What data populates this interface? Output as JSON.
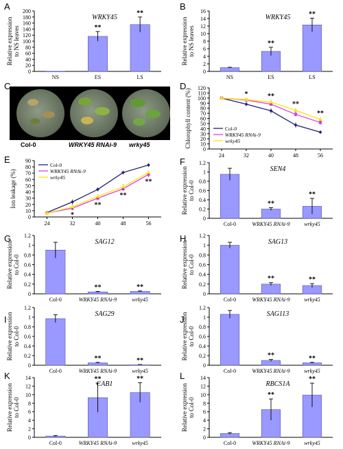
{
  "panel_letters": {
    "A": "A",
    "B": "B",
    "C": "C",
    "D": "D",
    "E": "E",
    "F": "F",
    "G": "G",
    "H": "H",
    "I": "I",
    "J": "J",
    "K": "K",
    "L": "L"
  },
  "photo": {
    "labels": [
      "Col-0",
      "WRKY45 RNAi-9",
      "wrky45"
    ]
  },
  "colors": {
    "bar": "#9999ff",
    "col0": "#1f1f7a",
    "rnai": "#e040e0",
    "wrky": "#ffe600"
  },
  "chart_data": [
    {
      "id": "A",
      "type": "bar",
      "title": "WRKY45",
      "ylabel": "Relative expression\nto NS leaves",
      "categories": [
        "NS",
        "ES",
        "LS"
      ],
      "values": [
        0.5,
        116,
        155
      ],
      "errors": [
        0,
        16,
        25
      ],
      "sig": [
        "",
        "**",
        "**"
      ],
      "ylim": [
        0,
        200
      ],
      "yticks": [
        0,
        20,
        40,
        60,
        80,
        100,
        120,
        140,
        160,
        180,
        200
      ]
    },
    {
      "id": "B",
      "type": "bar",
      "title": "WRKY45",
      "ylabel": "Relative expression\nto NS leaves",
      "categories": [
        "NS",
        "ES",
        "LS"
      ],
      "values": [
        1,
        5.3,
        12.3
      ],
      "errors": [
        0.1,
        1.1,
        1.8
      ],
      "sig": [
        "",
        "**",
        "**"
      ],
      "ylim": [
        0,
        16
      ],
      "yticks": [
        0,
        2,
        4,
        6,
        8,
        10,
        12,
        14,
        16
      ]
    },
    {
      "id": "D",
      "type": "line",
      "ylabel": "Chlorophyll content (%)",
      "x": [
        24,
        32,
        40,
        48,
        56
      ],
      "ylim": [
        0,
        120
      ],
      "yticks": [
        0,
        10,
        20,
        30,
        40,
        50,
        60,
        70,
        80,
        90,
        100,
        110,
        120
      ],
      "series": [
        {
          "name": "Col-0",
          "values": [
            100,
            88,
            75,
            47,
            33
          ],
          "errors": [
            2,
            4,
            5,
            5,
            3
          ]
        },
        {
          "name": "WRKY45 RNAi-9",
          "values": [
            100,
            96,
            88,
            68,
            52
          ],
          "errors": [
            2,
            3,
            3,
            4,
            4
          ]
        },
        {
          "name": "wrky45",
          "values": [
            100,
            97,
            92,
            76,
            58
          ],
          "errors": [
            2,
            3,
            4,
            4,
            4
          ]
        }
      ],
      "sig": [
        "",
        "*",
        "**",
        "**",
        "**"
      ],
      "legend": "bottom-left"
    },
    {
      "id": "E",
      "type": "line",
      "ylabel": "Ion leakage (%)",
      "x": [
        24,
        32,
        40,
        48,
        56
      ],
      "ylim": [
        0,
        90
      ],
      "yticks": [
        0,
        10,
        20,
        30,
        40,
        50,
        60,
        70,
        80,
        90
      ],
      "series": [
        {
          "name": "Col-0",
          "values": [
            7,
            24,
            44,
            71,
            83
          ],
          "errors": [
            1,
            4,
            3,
            3,
            3
          ]
        },
        {
          "name": "WRKY45 RNAi-9",
          "values": [
            6,
            14,
            30,
            45,
            68
          ],
          "errors": [
            1,
            3,
            3,
            3,
            4
          ]
        },
        {
          "name": "wrky45",
          "values": [
            6,
            16,
            33,
            48,
            71
          ],
          "errors": [
            1,
            3,
            3,
            4,
            3
          ]
        }
      ],
      "sig": [
        "",
        "*",
        "**",
        "**",
        "**"
      ],
      "legend": "top-left"
    },
    {
      "id": "F",
      "type": "bar",
      "title": "SEN4",
      "ylabel": "Relative expression\nto Col-0",
      "categories": [
        "Col-0",
        "WRKY45 RNAi-9",
        "wrky45"
      ],
      "values": [
        0.95,
        0.2,
        0.26
      ],
      "errors": [
        0.13,
        0.03,
        0.17
      ],
      "sig": [
        "",
        "**",
        "**"
      ],
      "ylim": [
        0,
        1.2
      ],
      "yticks": [
        0,
        0.2,
        0.4,
        0.6,
        0.8,
        1,
        1.2
      ]
    },
    {
      "id": "G",
      "type": "bar",
      "title": "SAG12",
      "ylabel": "Relative expression\nto Col-0",
      "categories": [
        "Col-0",
        "WRKY45 RNAi-9",
        "wrky45"
      ],
      "values": [
        0.9,
        0.04,
        0.05
      ],
      "errors": [
        0.16,
        0.01,
        0.01
      ],
      "sig": [
        "",
        "**",
        "**"
      ],
      "ylim": [
        0,
        1.2
      ],
      "yticks": [
        0,
        0.2,
        0.4,
        0.6,
        0.8,
        1,
        1.2
      ]
    },
    {
      "id": "H",
      "type": "bar",
      "title": "SAG13",
      "ylabel": "Relative expression\nto Col-0",
      "categories": [
        "Col-0",
        "WRKY45 RNAi-9",
        "wrky45"
      ],
      "values": [
        1.0,
        0.2,
        0.17
      ],
      "errors": [
        0.06,
        0.03,
        0.04
      ],
      "sig": [
        "",
        "**",
        "**"
      ],
      "ylim": [
        0,
        1.2
      ],
      "yticks": [
        0,
        0.2,
        0.4,
        0.6,
        0.8,
        1,
        1.2
      ]
    },
    {
      "id": "I",
      "type": "bar",
      "title": "SAG29",
      "ylabel": "Relative expression\nto Col-0",
      "categories": [
        "Col-0",
        "WRKY45 RNAi-9",
        "wrky45"
      ],
      "values": [
        0.97,
        0.05,
        0.01
      ],
      "errors": [
        0.08,
        0.01,
        0.005
      ],
      "sig": [
        "",
        "**",
        "**"
      ],
      "ylim": [
        0,
        1.2
      ],
      "yticks": [
        0,
        0.2,
        0.4,
        0.6,
        0.8,
        1,
        1.2
      ]
    },
    {
      "id": "J",
      "type": "bar",
      "title": "SAG113",
      "ylabel": "Relative expression\nto Col-0",
      "categories": [
        "Col-0",
        "WRKY45 RNAi-9",
        "wrky45"
      ],
      "values": [
        1.06,
        0.1,
        0.05
      ],
      "errors": [
        0.08,
        0.02,
        0.01
      ],
      "sig": [
        "",
        "**",
        "**"
      ],
      "ylim": [
        0,
        1.2
      ],
      "yticks": [
        0,
        0.2,
        0.4,
        0.6,
        0.8,
        1,
        1.2
      ]
    },
    {
      "id": "K",
      "type": "bar",
      "title": "CAB1",
      "ylabel": "Relative expression\nto Col-0",
      "categories": [
        "Col-0",
        "WRKY45 RNAi-9",
        "wrky45"
      ],
      "values": [
        0.3,
        9.3,
        10.5
      ],
      "errors": [
        0.1,
        3.4,
        2.3
      ],
      "sig": [
        "",
        "**",
        "**"
      ],
      "ylim": [
        0,
        14
      ],
      "yticks": [
        0,
        2,
        4,
        6,
        8,
        10,
        12,
        14
      ]
    },
    {
      "id": "L",
      "type": "bar",
      "title": "RBCS1A",
      "ylabel": "Relative expression\nto Col-0",
      "categories": [
        "Col-0",
        "WRKY45 RNAi-9",
        "wrky45"
      ],
      "values": [
        0.9,
        6.5,
        9.9
      ],
      "errors": [
        0.2,
        2.5,
        2.8
      ],
      "sig": [
        "",
        "**",
        "**"
      ],
      "ylim": [
        0,
        14
      ],
      "yticks": [
        0,
        2,
        4,
        6,
        8,
        10,
        12,
        14
      ]
    }
  ]
}
